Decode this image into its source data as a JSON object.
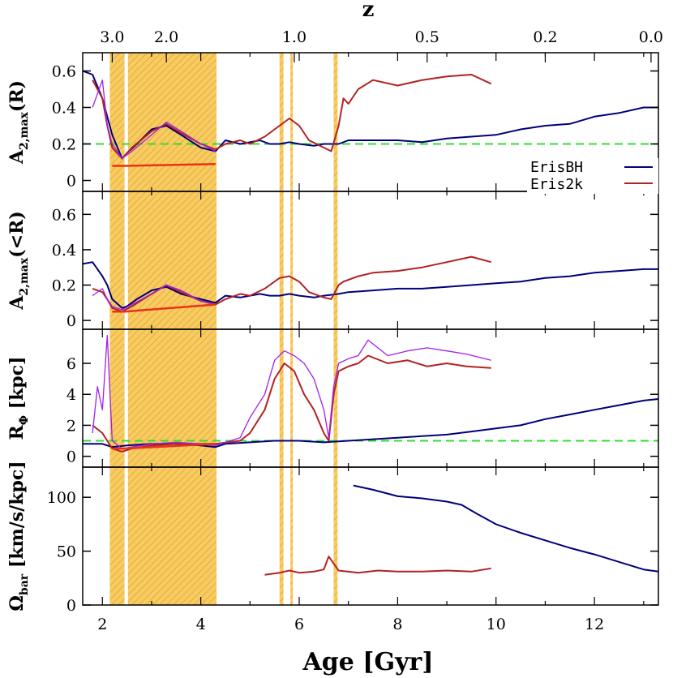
{
  "chart_data": {
    "type": "line",
    "xlabel": "Age [Gyr]",
    "x_ticks": [
      "2",
      "4",
      "6",
      "8",
      "10",
      "12"
    ],
    "xlim": [
      1.6,
      13.3
    ],
    "top_axis": {
      "label": "z",
      "ticks": [
        {
          "label": "3.0",
          "age": 2.2
        },
        {
          "label": "2.0",
          "age": 3.3
        },
        {
          "label": "1.0",
          "age": 5.9
        },
        {
          "label": "0.5",
          "age": 8.6
        },
        {
          "label": "0.2",
          "age": 11.0
        },
        {
          "label": "0.0",
          "age": 13.15
        }
      ]
    },
    "shaded_regions": [
      [
        2.15,
        2.45
      ],
      [
        2.52,
        4.32
      ],
      [
        5.6,
        5.68
      ],
      [
        5.82,
        5.87
      ],
      [
        6.7,
        6.78
      ]
    ],
    "shade_color": "#f4b000",
    "reference_color": "#33dd33",
    "series_colors": {
      "ErisBH": "#00007a",
      "Eris2k": "#b22222",
      "Eris2k_alt": "#a020f0"
    },
    "legend": {
      "entries": [
        "ErisBH",
        "Eris2k"
      ],
      "position": "top-right of top panel"
    },
    "panels": [
      {
        "ylabel": "A2,max(R)",
        "ylabel_main": "A",
        "ylabel_sub": "2,max",
        "ylabel_tail": "(R)",
        "ylim": [
          -0.06,
          0.7
        ],
        "y_ticks": [
          "0",
          "0.2",
          "0.4",
          "0.6"
        ],
        "y_tick_values": [
          0,
          0.2,
          0.4,
          0.6
        ],
        "reference": 0.2,
        "series": [
          {
            "name": "ErisBH",
            "x": [
              1.6,
              1.8,
              2.0,
              2.1,
              2.2,
              2.4,
              2.5,
              2.7,
              3.0,
              3.3,
              3.6,
              4.0,
              4.3,
              4.5,
              4.8,
              5.0,
              5.2,
              5.4,
              5.6,
              5.8,
              6.0,
              6.3,
              6.5,
              6.8,
              7.0,
              7.5,
              8.0,
              8.5,
              9.0,
              9.5,
              10.0,
              10.5,
              11.0,
              11.5,
              12.0,
              12.5,
              13.0,
              13.3
            ],
            "y": [
              0.6,
              0.58,
              0.45,
              0.35,
              0.25,
              0.12,
              0.15,
              0.2,
              0.28,
              0.3,
              0.25,
              0.18,
              0.16,
              0.22,
              0.2,
              0.21,
              0.22,
              0.2,
              0.2,
              0.21,
              0.2,
              0.19,
              0.2,
              0.2,
              0.22,
              0.22,
              0.22,
              0.21,
              0.23,
              0.24,
              0.25,
              0.28,
              0.3,
              0.31,
              0.35,
              0.37,
              0.4,
              0.4
            ]
          },
          {
            "name": "Eris2k",
            "x": [
              1.8,
              2.0,
              2.1,
              2.2,
              2.4,
              2.6,
              3.0,
              3.3,
              3.6,
              4.0,
              4.3,
              4.5,
              4.8,
              5.0,
              5.3,
              5.6,
              5.8,
              6.0,
              6.2,
              6.5,
              6.65,
              6.8,
              6.9,
              7.0,
              7.2,
              7.5,
              8.0,
              8.5,
              9.0,
              9.5,
              9.9
            ],
            "y": [
              0.55,
              0.45,
              0.3,
              0.18,
              0.12,
              0.18,
              0.27,
              0.31,
              0.26,
              0.2,
              0.17,
              0.2,
              0.22,
              0.2,
              0.24,
              0.3,
              0.34,
              0.3,
              0.22,
              0.18,
              0.16,
              0.3,
              0.45,
              0.42,
              0.5,
              0.55,
              0.52,
              0.55,
              0.57,
              0.58,
              0.53
            ]
          },
          {
            "name": "Eris2k_alt",
            "x": [
              1.8,
              2.0,
              2.1,
              2.2,
              2.4,
              2.6,
              3.0,
              3.3,
              3.6,
              4.0,
              4.3
            ],
            "y": [
              0.4,
              0.55,
              0.3,
              0.2,
              0.12,
              0.16,
              0.25,
              0.32,
              0.27,
              0.2,
              0.16
            ]
          },
          {
            "name": "Eris2k_fill",
            "x": [
              2.2,
              2.45,
              4.3
            ],
            "y": [
              0.08,
              0.08,
              0.09
            ]
          }
        ]
      },
      {
        "ylabel": "A2,max(<R)",
        "ylabel_main": "A",
        "ylabel_sub": "2,max",
        "ylabel_tail": "(<R)",
        "ylim": [
          -0.05,
          0.73
        ],
        "y_ticks": [
          "0",
          "0.2",
          "0.4",
          "0.6"
        ],
        "y_tick_values": [
          0,
          0.2,
          0.4,
          0.6
        ],
        "series": [
          {
            "name": "ErisBH",
            "x": [
              1.6,
              1.8,
              2.0,
              2.1,
              2.2,
              2.4,
              2.5,
              2.7,
              3.0,
              3.3,
              3.6,
              4.0,
              4.3,
              4.5,
              4.8,
              5.0,
              5.2,
              5.4,
              5.6,
              5.8,
              6.0,
              6.3,
              6.5,
              6.8,
              7.0,
              7.5,
              8.0,
              8.5,
              9.0,
              9.5,
              10.0,
              10.5,
              11.0,
              11.5,
              12.0,
              12.5,
              13.0,
              13.3
            ],
            "y": [
              0.32,
              0.33,
              0.25,
              0.2,
              0.12,
              0.07,
              0.08,
              0.12,
              0.17,
              0.19,
              0.15,
              0.12,
              0.1,
              0.14,
              0.13,
              0.14,
              0.15,
              0.14,
              0.14,
              0.15,
              0.14,
              0.13,
              0.14,
              0.15,
              0.16,
              0.17,
              0.18,
              0.18,
              0.19,
              0.2,
              0.21,
              0.22,
              0.24,
              0.25,
              0.27,
              0.28,
              0.29,
              0.29
            ]
          },
          {
            "name": "Eris2k",
            "x": [
              1.8,
              2.0,
              2.1,
              2.2,
              2.4,
              2.6,
              3.0,
              3.3,
              3.6,
              4.0,
              4.3,
              4.5,
              4.8,
              5.0,
              5.3,
              5.6,
              5.8,
              6.0,
              6.2,
              6.5,
              6.65,
              6.8,
              6.9,
              7.0,
              7.2,
              7.5,
              8.0,
              8.5,
              9.0,
              9.5,
              9.9
            ],
            "y": [
              0.18,
              0.16,
              0.12,
              0.07,
              0.05,
              0.08,
              0.15,
              0.2,
              0.16,
              0.11,
              0.09,
              0.12,
              0.15,
              0.14,
              0.18,
              0.24,
              0.25,
              0.22,
              0.16,
              0.13,
              0.12,
              0.2,
              0.22,
              0.23,
              0.25,
              0.27,
              0.28,
              0.3,
              0.33,
              0.36,
              0.33
            ]
          },
          {
            "name": "Eris2k_alt",
            "x": [
              1.8,
              2.0,
              2.1,
              2.2,
              2.4,
              2.6,
              3.0,
              3.3,
              3.6,
              4.0,
              4.3
            ],
            "y": [
              0.14,
              0.18,
              0.12,
              0.08,
              0.06,
              0.09,
              0.15,
              0.2,
              0.17,
              0.11,
              0.09
            ]
          },
          {
            "name": "Eris2k_fill",
            "x": [
              2.2,
              2.45,
              4.3
            ],
            "y": [
              0.05,
              0.05,
              0.09
            ]
          }
        ]
      },
      {
        "ylabel": "RΦ [kpc]",
        "ylabel_main": "R",
        "ylabel_sub": "Φ",
        "ylabel_tail": " [kpc]",
        "ylim": [
          -0.7,
          8.2
        ],
        "y_ticks": [
          "0",
          "2",
          "4",
          "6"
        ],
        "y_tick_values": [
          0,
          2,
          4,
          6
        ],
        "reference": 1.0,
        "series": [
          {
            "name": "ErisBH",
            "x": [
              1.6,
              2.0,
              2.2,
              2.5,
              3.0,
              3.5,
              4.0,
              4.3,
              4.5,
              5.0,
              5.5,
              6.0,
              6.5,
              7.0,
              7.5,
              8.0,
              8.5,
              9.0,
              9.5,
              10.0,
              10.5,
              11.0,
              11.5,
              12.0,
              12.5,
              13.0,
              13.3
            ],
            "y": [
              0.8,
              0.8,
              0.6,
              0.7,
              0.8,
              0.8,
              0.7,
              0.6,
              0.8,
              0.9,
              1.0,
              1.0,
              0.9,
              1.0,
              1.1,
              1.2,
              1.3,
              1.4,
              1.6,
              1.8,
              2.0,
              2.4,
              2.7,
              3.0,
              3.3,
              3.6,
              3.7
            ]
          },
          {
            "name": "Eris2k",
            "x": [
              1.8,
              2.0,
              2.1,
              2.2,
              2.4,
              2.6,
              3.0,
              3.5,
              4.0,
              4.3,
              4.8,
              5.0,
              5.3,
              5.5,
              5.7,
              5.9,
              6.1,
              6.3,
              6.5,
              6.6,
              6.7,
              6.8,
              7.0,
              7.2,
              7.4,
              7.8,
              8.2,
              8.6,
              9.0,
              9.4,
              9.9
            ],
            "y": [
              2.0,
              1.5,
              1.0,
              0.5,
              0.3,
              0.5,
              0.7,
              0.8,
              0.8,
              0.8,
              1.0,
              1.5,
              3.0,
              5.0,
              6.0,
              5.5,
              4.0,
              3.0,
              1.5,
              1.0,
              4.0,
              5.5,
              5.8,
              6.0,
              6.5,
              6.0,
              6.2,
              5.8,
              6.0,
              5.8,
              5.7
            ]
          },
          {
            "name": "Eris2k_alt",
            "x": [
              1.8,
              1.9,
              2.0,
              2.1,
              2.2,
              2.4,
              2.6,
              3.0,
              3.5,
              4.0,
              4.3,
              4.8,
              5.0,
              5.3,
              5.5,
              5.7,
              5.9,
              6.1,
              6.3,
              6.5,
              6.6,
              6.7,
              6.8,
              7.0,
              7.2,
              7.4,
              7.8,
              8.2,
              8.6,
              9.0,
              9.4,
              9.9
            ],
            "y": [
              1.5,
              4.5,
              3.0,
              7.8,
              1.0,
              0.5,
              0.6,
              0.8,
              0.9,
              0.8,
              0.7,
              1.2,
              2.5,
              4.0,
              6.2,
              6.8,
              6.5,
              6.0,
              5.0,
              3.0,
              1.2,
              4.5,
              6.0,
              6.3,
              6.5,
              7.5,
              6.5,
              6.8,
              7.0,
              6.8,
              6.6,
              6.2
            ]
          },
          {
            "name": "Eris2k_fill",
            "x": [
              2.2,
              2.45,
              4.3
            ],
            "y": [
              0.5,
              0.5,
              0.8
            ]
          }
        ]
      },
      {
        "ylabel": "Ωbar [km/s/kpc]",
        "ylabel_main": "Ω",
        "ylabel_sub": "bar",
        "ylabel_tail": " [km/s/kpc]",
        "ylim": [
          0,
          128
        ],
        "y_ticks": [
          "0",
          "50",
          "100"
        ],
        "y_tick_values": [
          0,
          50,
          100
        ],
        "series": [
          {
            "name": "ErisBH",
            "x": [
              7.1,
              7.5,
              8.0,
              8.5,
              9.0,
              9.3,
              9.6,
              10.0,
              10.5,
              11.0,
              11.5,
              12.0,
              12.5,
              13.0,
              13.3
            ],
            "y": [
              111,
              107,
              101,
              99,
              96,
              93,
              85,
              75,
              67,
              60,
              53,
              47,
              40,
              33,
              31
            ]
          },
          {
            "name": "Eris2k",
            "x": [
              5.3,
              5.6,
              5.8,
              6.0,
              6.3,
              6.5,
              6.6,
              6.8,
              7.2,
              7.6,
              8.0,
              8.5,
              9.0,
              9.5,
              9.9
            ],
            "y": [
              28,
              30,
              32,
              30,
              31,
              33,
              45,
              32,
              30,
              32,
              31,
              31,
              32,
              31,
              34
            ]
          }
        ]
      }
    ]
  }
}
